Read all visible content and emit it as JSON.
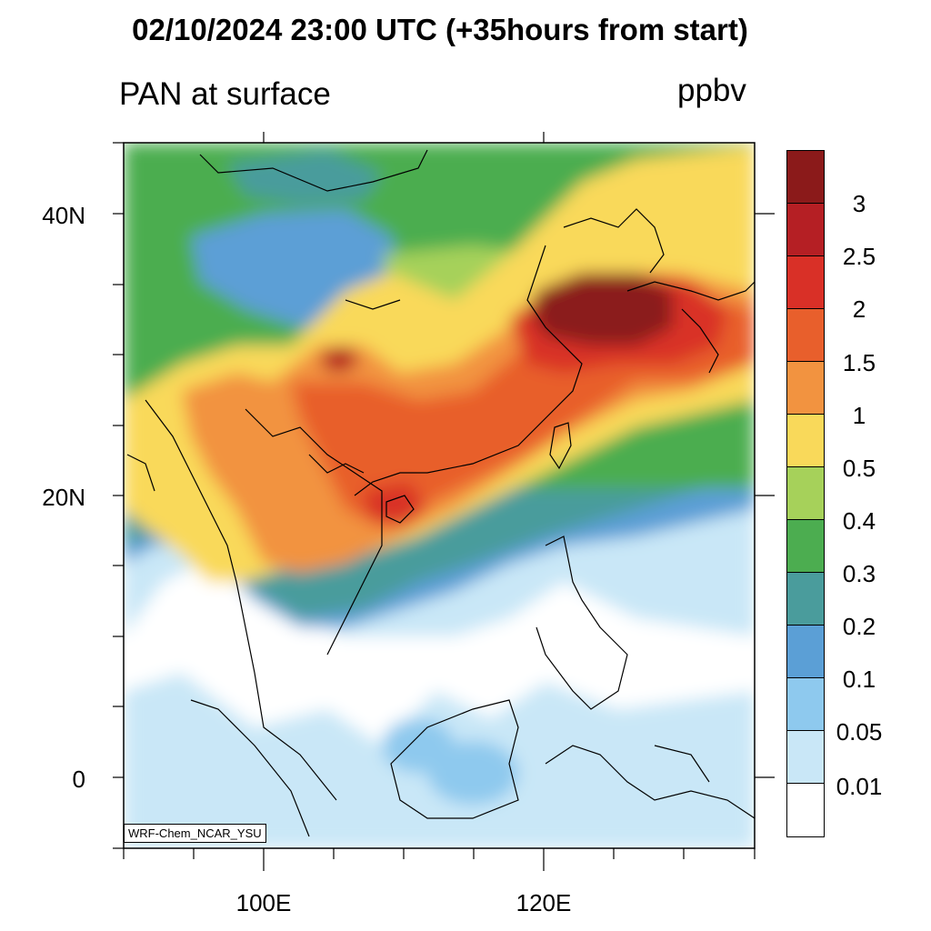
{
  "title": "02/10/2024 23:00 UTC (+35hours from start)",
  "subtitle": "PAN at surface",
  "units": "ppbv",
  "credit": "WRF-Chem_NCAR_YSU",
  "lat_labels": [
    "40N",
    "20N",
    "0"
  ],
  "lon_labels": [
    "100E",
    "120E"
  ],
  "colorbar": {
    "labels": [
      "3",
      "2.5",
      "2",
      "1.5",
      "1",
      "0.5",
      "0.4",
      "0.3",
      "0.2",
      "0.1",
      "0.05",
      "0.01"
    ],
    "colors": [
      "#8b1a1a",
      "#b51f24",
      "#d93027",
      "#e85f2c",
      "#f29340",
      "#f9d95a",
      "#a6d15a",
      "#4cad50",
      "#4a9c9c",
      "#5b9fd6",
      "#8ec9ee",
      "#c9e7f7",
      "#ffffff"
    ]
  },
  "chart_data": {
    "type": "heatmap",
    "variable": "PAN at surface",
    "units": "ppbv",
    "xlim": [
      90,
      135
    ],
    "ylim": [
      -5,
      45
    ],
    "levels": [
      0.01,
      0.05,
      0.1,
      0.2,
      0.3,
      0.4,
      0.5,
      1,
      1.5,
      2,
      2.5,
      3
    ]
  }
}
